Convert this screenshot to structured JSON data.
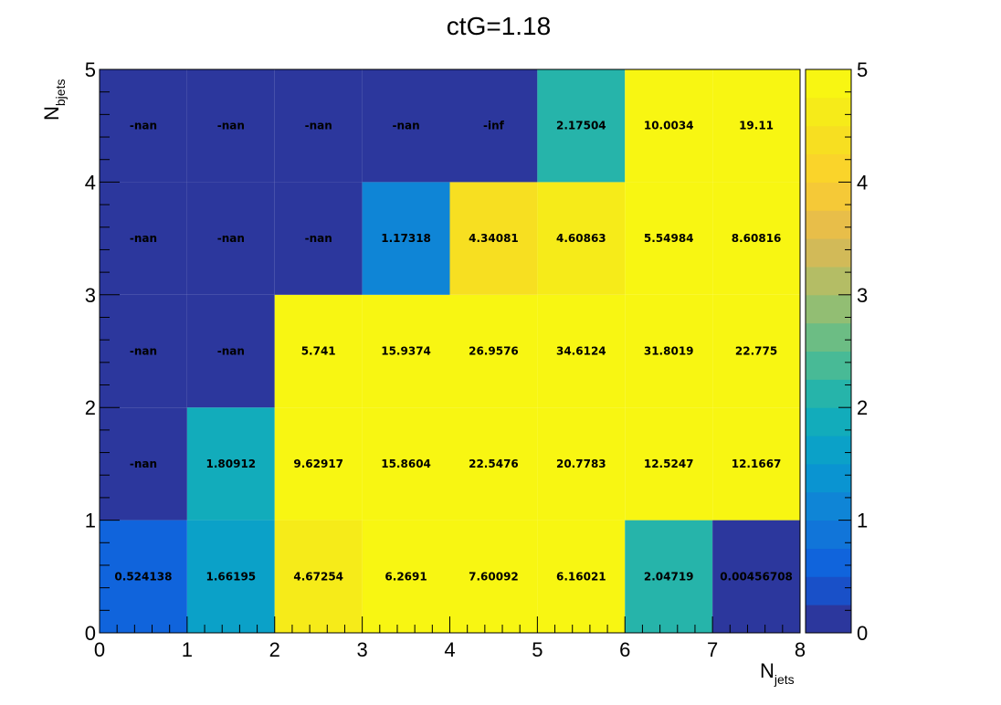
{
  "chart_data": {
    "type": "heatmap",
    "title": "ctG=1.18",
    "xlabel": {
      "main": "N",
      "sub": "jets"
    },
    "ylabel": {
      "main": "N",
      "sub": "bjets"
    },
    "xlim": [
      0,
      8
    ],
    "ylim": [
      0,
      5
    ],
    "x_ticks": [
      "0",
      "1",
      "2",
      "3",
      "4",
      "5",
      "6",
      "7",
      "8"
    ],
    "y_ticks": [
      "0",
      "1",
      "2",
      "3",
      "4",
      "5"
    ],
    "colorbar": {
      "min": 0,
      "max": 5,
      "ticks": [
        "0",
        "1",
        "2",
        "3",
        "4",
        "5"
      ],
      "colormap": "parula"
    },
    "grid": false,
    "values": [
      [
        0.524138,
        1.66195,
        4.67254,
        6.2691,
        7.60092,
        6.16021,
        2.04719,
        0.00456708
      ],
      [
        null,
        1.80912,
        9.62917,
        15.8604,
        22.5476,
        20.7783,
        12.5247,
        12.1667
      ],
      [
        null,
        null,
        5.741,
        15.9374,
        26.9576,
        34.6124,
        31.8019,
        22.775
      ],
      [
        null,
        null,
        null,
        1.17318,
        4.34081,
        4.60863,
        5.54984,
        8.60816
      ],
      [
        null,
        null,
        null,
        null,
        null,
        2.17504,
        10.0034,
        19.11
      ]
    ],
    "labels": [
      [
        "0.524138",
        "1.66195",
        "4.67254",
        "6.2691",
        "7.60092",
        "6.16021",
        "2.04719",
        "0.00456708"
      ],
      [
        "-nan",
        "1.80912",
        "9.62917",
        "15.8604",
        "22.5476",
        "20.7783",
        "12.5247",
        "12.1667"
      ],
      [
        "-nan",
        "-nan",
        "5.741",
        "15.9374",
        "26.9576",
        "34.6124",
        "31.8019",
        "22.775"
      ],
      [
        "-nan",
        "-nan",
        "-nan",
        "1.17318",
        "4.34081",
        "4.60863",
        "5.54984",
        "8.60816"
      ],
      [
        "-nan",
        "-nan",
        "-nan",
        "-nan",
        "-inf",
        "2.17504",
        "10.0034",
        "19.11"
      ]
    ]
  }
}
